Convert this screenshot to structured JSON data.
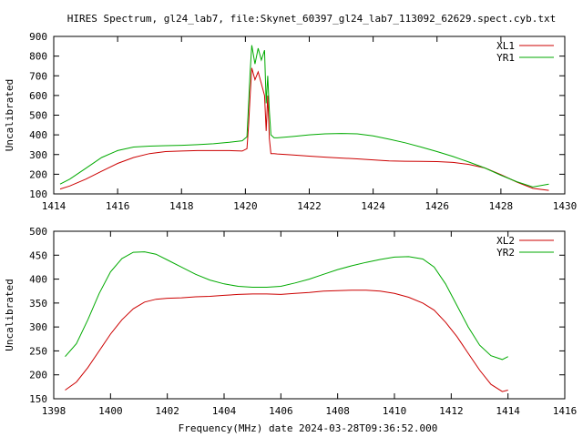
{
  "figure": {
    "title": "HIRES Spectrum, gl24_lab7, file:Skynet_60397_gl24_lab7_113092_62629.spect.cyb.txt",
    "xlabel": "Frequency(MHz) date 2024-03-28T09:36:52.000"
  },
  "chart_data": [
    {
      "type": "line",
      "ylabel": "Uncalibrated",
      "xlim": [
        1414,
        1430
      ],
      "ylim": [
        100,
        900
      ],
      "xticks": [
        1414,
        1416,
        1418,
        1420,
        1422,
        1424,
        1426,
        1428,
        1430
      ],
      "yticks": [
        100,
        200,
        300,
        400,
        500,
        600,
        700,
        800,
        900
      ],
      "legend_position": "top-right",
      "grid": false,
      "series": [
        {
          "name": "XL1",
          "color": "#cc0000",
          "x": [
            1414.2,
            1414.5,
            1415,
            1415.5,
            1416,
            1416.5,
            1417,
            1417.5,
            1418,
            1418.5,
            1419,
            1419.5,
            1419.9,
            1420.05,
            1420.1,
            1420.15,
            1420.2,
            1420.3,
            1420.4,
            1420.5,
            1420.6,
            1420.65,
            1420.7,
            1420.75,
            1420.8,
            1420.9,
            1421,
            1421.5,
            1422,
            1422.5,
            1423,
            1423.5,
            1424,
            1424.5,
            1425,
            1425.5,
            1426,
            1426.5,
            1427,
            1427.5,
            1428,
            1428.5,
            1429,
            1429.5
          ],
          "values": [
            125,
            140,
            175,
            215,
            255,
            285,
            305,
            315,
            318,
            320,
            320,
            320,
            318,
            330,
            450,
            600,
            740,
            680,
            720,
            660,
            600,
            420,
            600,
            380,
            305,
            305,
            303,
            298,
            292,
            287,
            282,
            278,
            273,
            268,
            266,
            265,
            264,
            260,
            250,
            232,
            198,
            160,
            128,
            118
          ]
        },
        {
          "name": "YR1",
          "color": "#00aa00",
          "x": [
            1414.2,
            1414.5,
            1415,
            1415.5,
            1416,
            1416.5,
            1417,
            1417.5,
            1418,
            1418.5,
            1419,
            1419.5,
            1419.9,
            1420.05,
            1420.1,
            1420.15,
            1420.2,
            1420.3,
            1420.4,
            1420.5,
            1420.6,
            1420.65,
            1420.7,
            1420.75,
            1420.8,
            1420.9,
            1421,
            1421.5,
            1422,
            1422.5,
            1423,
            1423.5,
            1424,
            1424.5,
            1425,
            1425.5,
            1426,
            1426.5,
            1427,
            1427.5,
            1428,
            1428.5,
            1429,
            1429.5
          ],
          "values": [
            150,
            175,
            230,
            285,
            320,
            338,
            343,
            345,
            347,
            350,
            355,
            362,
            370,
            390,
            560,
            720,
            855,
            760,
            840,
            780,
            830,
            560,
            700,
            520,
            400,
            385,
            385,
            392,
            400,
            405,
            407,
            405,
            395,
            378,
            360,
            338,
            315,
            290,
            262,
            232,
            195,
            162,
            135,
            150
          ]
        }
      ]
    },
    {
      "type": "line",
      "ylabel": "Uncalibrated",
      "xlim": [
        1398,
        1416
      ],
      "ylim": [
        150,
        500
      ],
      "xticks": [
        1398,
        1400,
        1402,
        1404,
        1406,
        1408,
        1410,
        1412,
        1414,
        1416
      ],
      "yticks": [
        150,
        200,
        250,
        300,
        350,
        400,
        450,
        500
      ],
      "legend_position": "top-right",
      "grid": false,
      "series": [
        {
          "name": "XL2",
          "color": "#cc0000",
          "x": [
            1398.4,
            1398.8,
            1399.2,
            1399.6,
            1400,
            1400.4,
            1400.8,
            1401.2,
            1401.6,
            1402,
            1402.5,
            1403,
            1403.5,
            1404,
            1404.5,
            1405,
            1405.5,
            1406,
            1406.5,
            1407,
            1407.5,
            1408,
            1408.5,
            1409,
            1409.5,
            1410,
            1410.5,
            1411,
            1411.4,
            1411.8,
            1412.2,
            1412.6,
            1413,
            1413.4,
            1413.8,
            1414
          ],
          "values": [
            168,
            185,
            215,
            250,
            285,
            315,
            338,
            352,
            358,
            360,
            361,
            363,
            364,
            366,
            368,
            369,
            369,
            368,
            370,
            372,
            375,
            376,
            377,
            377,
            375,
            370,
            362,
            350,
            335,
            310,
            280,
            245,
            210,
            180,
            165,
            168
          ]
        },
        {
          "name": "YR2",
          "color": "#00aa00",
          "x": [
            1398.4,
            1398.8,
            1399.2,
            1399.6,
            1400,
            1400.4,
            1400.8,
            1401.2,
            1401.6,
            1402,
            1402.5,
            1403,
            1403.5,
            1404,
            1404.5,
            1405,
            1405.5,
            1406,
            1406.5,
            1407,
            1407.5,
            1408,
            1408.5,
            1409,
            1409.5,
            1410,
            1410.5,
            1411,
            1411.4,
            1411.8,
            1412.2,
            1412.6,
            1413,
            1413.4,
            1413.8,
            1414
          ],
          "values": [
            238,
            265,
            315,
            370,
            415,
            443,
            456,
            457,
            452,
            440,
            425,
            410,
            398,
            390,
            385,
            383,
            383,
            385,
            392,
            400,
            410,
            420,
            428,
            435,
            441,
            446,
            447,
            442,
            425,
            390,
            345,
            300,
            262,
            240,
            232,
            238
          ]
        }
      ]
    }
  ]
}
